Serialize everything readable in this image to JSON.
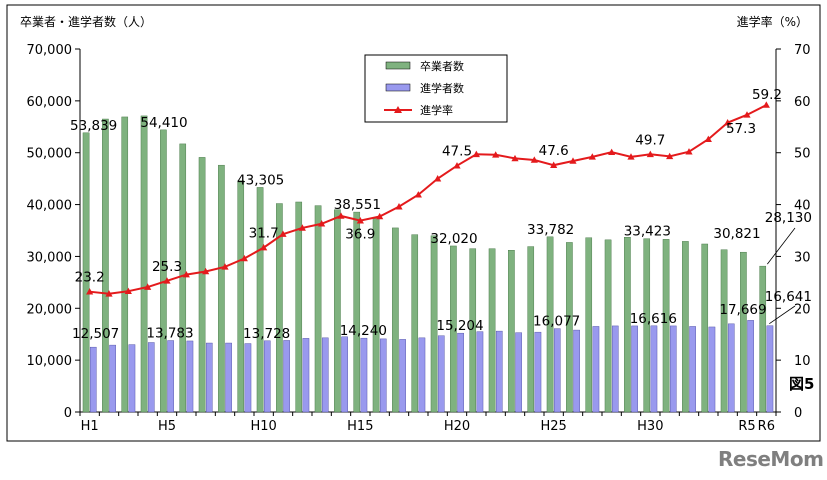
{
  "page": {
    "figure_label": "図5",
    "logo_text": "ReseMom"
  },
  "chart_data": {
    "type": "bar",
    "left_axis_title": "卒業者・進学者数（人）",
    "right_axis_title": "進学率（%）",
    "ylim_left": [
      0,
      70000
    ],
    "ylim_right": [
      0,
      70
    ],
    "y_left_ticks": [
      "0",
      "10,000",
      "20,000",
      "30,000",
      "40,000",
      "50,000",
      "60,000",
      "70,000"
    ],
    "y_right_ticks": [
      "0",
      "10",
      "20",
      "30",
      "40",
      "50",
      "60",
      "70"
    ],
    "categories": [
      "H1",
      "H2",
      "H3",
      "H4",
      "H5",
      "H6",
      "H7",
      "H8",
      "H9",
      "H10",
      "H11",
      "H12",
      "H13",
      "H14",
      "H15",
      "H16",
      "H17",
      "H18",
      "H19",
      "H20",
      "H21",
      "H22",
      "H23",
      "H24",
      "H25",
      "H26",
      "H27",
      "H28",
      "H29",
      "H30",
      "R1",
      "R2",
      "R3",
      "R4",
      "R5",
      "R6"
    ],
    "x_tick_labels": [
      {
        "index": 0,
        "text": "H1"
      },
      {
        "index": 4,
        "text": "H5"
      },
      {
        "index": 9,
        "text": "H10"
      },
      {
        "index": 14,
        "text": "H15"
      },
      {
        "index": 19,
        "text": "H20"
      },
      {
        "index": 24,
        "text": "H25"
      },
      {
        "index": 29,
        "text": "H30"
      },
      {
        "index": 34,
        "text": "R5"
      },
      {
        "index": 35,
        "text": "R6"
      }
    ],
    "grid": false,
    "legend_position": "top-center",
    "series": [
      {
        "name": "卒業者数",
        "type": "bar",
        "color": "#7fb27f",
        "values": [
          53839,
          56500,
          56900,
          57100,
          54410,
          51700,
          49100,
          47600,
          44600,
          43305,
          40200,
          40500,
          39800,
          39000,
          38551,
          37300,
          35500,
          34200,
          34000,
          32020,
          31500,
          31500,
          31200,
          31900,
          33782,
          32700,
          33600,
          33200,
          33700,
          33423,
          33300,
          32900,
          32400,
          31300,
          30821,
          28130
        ]
      },
      {
        "name": "進学者数",
        "type": "bar",
        "color": "#9999ee",
        "values": [
          12507,
          12900,
          13000,
          13400,
          13783,
          13700,
          13300,
          13300,
          13200,
          13728,
          13800,
          14200,
          14300,
          14500,
          14240,
          14100,
          14000,
          14300,
          14700,
          15204,
          15500,
          15600,
          15300,
          15400,
          16077,
          15800,
          16500,
          16600,
          16600,
          16616,
          16600,
          16500,
          16400,
          17000,
          17669,
          16641
        ]
      },
      {
        "name": "進学率",
        "type": "line",
        "color": "#e41a1c",
        "values": [
          23.2,
          22.8,
          23.3,
          24.1,
          25.3,
          26.5,
          27.1,
          28.0,
          29.6,
          31.7,
          34.3,
          35.5,
          36.3,
          37.8,
          36.9,
          37.7,
          39.6,
          41.9,
          45.0,
          47.5,
          49.7,
          49.6,
          48.9,
          48.6,
          47.6,
          48.4,
          49.2,
          50.1,
          49.2,
          49.7,
          49.3,
          50.2,
          52.6,
          55.8,
          57.3,
          59.2
        ]
      }
    ],
    "data_labels": {
      "graduates": [
        {
          "index": 0,
          "text": "53,839"
        },
        {
          "index": 4,
          "text": "54,410"
        },
        {
          "index": 9,
          "text": "43,305"
        },
        {
          "index": 14,
          "text": "38,551"
        },
        {
          "index": 19,
          "text": "32,020"
        },
        {
          "index": 24,
          "text": "33,782"
        },
        {
          "index": 29,
          "text": "33,423"
        },
        {
          "index": 34,
          "text": "30,821"
        },
        {
          "index": 35,
          "text": "28,130"
        }
      ],
      "enrolled": [
        {
          "index": 0,
          "text": "12,507"
        },
        {
          "index": 4,
          "text": "13,783"
        },
        {
          "index": 9,
          "text": "13,728"
        },
        {
          "index": 14,
          "text": "14,240"
        },
        {
          "index": 19,
          "text": "15,204"
        },
        {
          "index": 24,
          "text": "16,077"
        },
        {
          "index": 29,
          "text": "16,616"
        },
        {
          "index": 34,
          "text": "17,669"
        },
        {
          "index": 35,
          "text": "16,641"
        }
      ],
      "rate": [
        {
          "index": 0,
          "text": "23.2"
        },
        {
          "index": 4,
          "text": "25.3"
        },
        {
          "index": 9,
          "text": "31.7"
        },
        {
          "index": 14,
          "text": "36.9"
        },
        {
          "index": 19,
          "text": "47.5"
        },
        {
          "index": 24,
          "text": "47.6"
        },
        {
          "index": 29,
          "text": "49.7"
        },
        {
          "index": 34,
          "text": "57.3"
        },
        {
          "index": 35,
          "text": "59.2"
        }
      ]
    }
  }
}
